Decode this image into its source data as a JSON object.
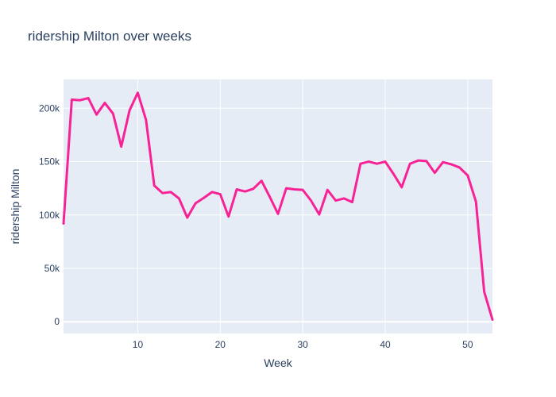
{
  "chart_data": {
    "type": "line",
    "title": "ridership Milton over weeks",
    "xlabel": "Week",
    "ylabel": "ridership Milton",
    "xlim": [
      1,
      53
    ],
    "ylim": [
      -11000,
      227000
    ],
    "x_ticks": [
      10,
      20,
      30,
      40,
      50
    ],
    "x_tick_labels": [
      "10",
      "20",
      "30",
      "40",
      "50"
    ],
    "y_ticks": [
      0,
      50000,
      100000,
      150000,
      200000
    ],
    "y_tick_labels": [
      "0",
      "50k",
      "100k",
      "150k",
      "200k"
    ],
    "grid": true,
    "background_color": "#e5ecf6",
    "series": [
      {
        "name": "ridership Milton",
        "color": "#f72396",
        "x": [
          1,
          2,
          3,
          4,
          5,
          6,
          7,
          8,
          9,
          10,
          11,
          12,
          13,
          14,
          15,
          16,
          17,
          18,
          19,
          20,
          21,
          22,
          23,
          24,
          25,
          26,
          27,
          28,
          29,
          30,
          31,
          32,
          33,
          34,
          35,
          36,
          37,
          38,
          39,
          40,
          41,
          42,
          43,
          44,
          45,
          46,
          47,
          48,
          49,
          50,
          51,
          52,
          53
        ],
        "values": [
          92000,
          208000,
          207500,
          209500,
          194000,
          205000,
          195000,
          164000,
          198000,
          214500,
          189000,
          127500,
          120500,
          121500,
          115500,
          97500,
          111000,
          116000,
          121500,
          119500,
          98500,
          124000,
          122000,
          124500,
          132000,
          117000,
          101000,
          125000,
          124000,
          123500,
          113500,
          100500,
          123500,
          113500,
          115500,
          112000,
          148000,
          150000,
          148000,
          150000,
          138500,
          126000,
          148000,
          151000,
          150500,
          139500,
          149500,
          147500,
          144500,
          137000,
          112500,
          28000,
          2000
        ]
      }
    ]
  }
}
